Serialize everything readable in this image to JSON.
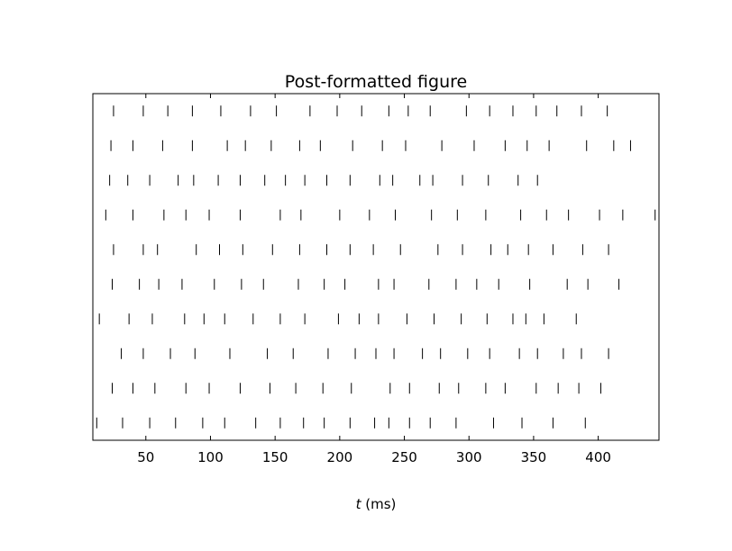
{
  "chart_data": {
    "type": "raster",
    "title": "Post-formatted figure",
    "xlabel_var": "t",
    "xlabel_unit": " (ms)",
    "xlim": [
      9,
      447
    ],
    "xticks": [
      50,
      100,
      150,
      200,
      250,
      300,
      350,
      400
    ],
    "xtick_labels": [
      "50",
      "100",
      "150",
      "200",
      "250",
      "300",
      "350",
      "400"
    ],
    "yticks_visible": false,
    "grid": false,
    "colors": {
      "spike": "#000000",
      "frame": "#000000",
      "background": "#ffffff"
    },
    "trials": [
      [
        25,
        48,
        67,
        86,
        108,
        131,
        151,
        177,
        198,
        217,
        238,
        253,
        270,
        298,
        316,
        334,
        352,
        368,
        387,
        407
      ],
      [
        23,
        40,
        63,
        86,
        113,
        127,
        147,
        169,
        185,
        210,
        233,
        251,
        279,
        304,
        328,
        345,
        362,
        391,
        412,
        425
      ],
      [
        22,
        36,
        53,
        75,
        87,
        106,
        123,
        142,
        158,
        173,
        190,
        208,
        231,
        241,
        262,
        272,
        295,
        315,
        338,
        353
      ],
      [
        19,
        40,
        64,
        81,
        99,
        123,
        154,
        170,
        200,
        223,
        243,
        271,
        291,
        313,
        340,
        360,
        377,
        401,
        419,
        444
      ],
      [
        25,
        48,
        59,
        89,
        107,
        125,
        148,
        169,
        190,
        208,
        226,
        247,
        276,
        295,
        317,
        330,
        346,
        365,
        388,
        408
      ],
      [
        24,
        45,
        60,
        78,
        103,
        124,
        141,
        168,
        188,
        204,
        230,
        242,
        269,
        290,
        306,
        323,
        347,
        376,
        392,
        416
      ],
      [
        14,
        37,
        55,
        80,
        95,
        111,
        133,
        154,
        173,
        199,
        215,
        230,
        252,
        273,
        294,
        314,
        334,
        344,
        358,
        383
      ],
      [
        31,
        48,
        69,
        88,
        115,
        144,
        164,
        191,
        212,
        228,
        242,
        264,
        278,
        299,
        316,
        339,
        353,
        373,
        387,
        408
      ],
      [
        24,
        40,
        57,
        81,
        99,
        123,
        146,
        166,
        187,
        209,
        239,
        254,
        277,
        292,
        313,
        328,
        352,
        369,
        385,
        402
      ],
      [
        12,
        32,
        53,
        73,
        94,
        111,
        135,
        154,
        172,
        188,
        208,
        227,
        238,
        254,
        270,
        290,
        319,
        341,
        365,
        390
      ]
    ]
  }
}
